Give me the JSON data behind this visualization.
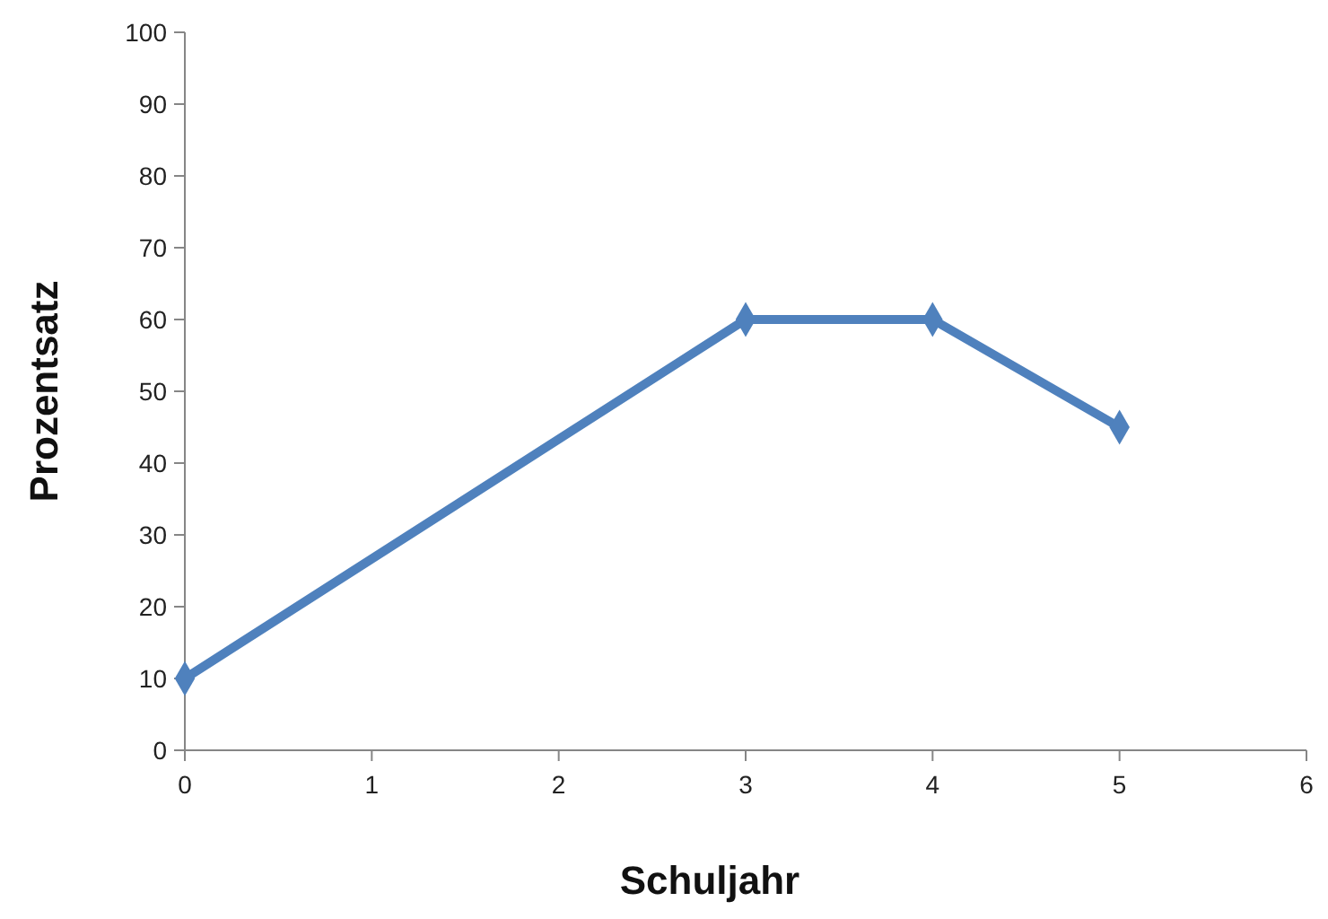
{
  "chart_data": {
    "type": "line",
    "xlabel": "Schuljahr",
    "ylabel": "Prozentsatz",
    "x": [
      0,
      3,
      4,
      5
    ],
    "series": [
      {
        "color": "#4f81bd",
        "values": [
          10,
          60,
          60,
          45
        ]
      }
    ],
    "xlim": [
      0,
      6
    ],
    "xticks": [
      0,
      1,
      2,
      3,
      4,
      5,
      6
    ],
    "ylim": [
      0,
      100
    ],
    "yticks": [
      0,
      10,
      20,
      30,
      40,
      50,
      60,
      70,
      80,
      90,
      100
    ],
    "grid": false,
    "marker": "diamond",
    "line_style": "solid"
  }
}
